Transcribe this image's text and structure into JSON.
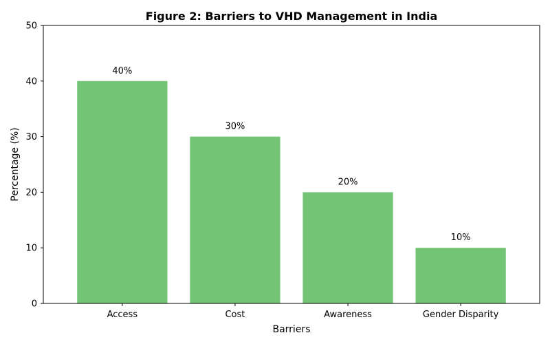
{
  "chart_data": {
    "type": "bar",
    "title": "Figure 2: Barriers to VHD Management in India",
    "xlabel": "Barriers",
    "ylabel": "Percentage (%)",
    "categories": [
      "Access",
      "Cost",
      "Awareness",
      "Gender Disparity"
    ],
    "values": [
      40,
      30,
      20,
      10
    ],
    "data_labels": [
      "40%",
      "30%",
      "20%",
      "10%"
    ],
    "ylim": [
      0,
      50
    ],
    "yticks": [
      0,
      10,
      20,
      30,
      40,
      50
    ],
    "grid": false,
    "bar_color": "#74c476"
  }
}
